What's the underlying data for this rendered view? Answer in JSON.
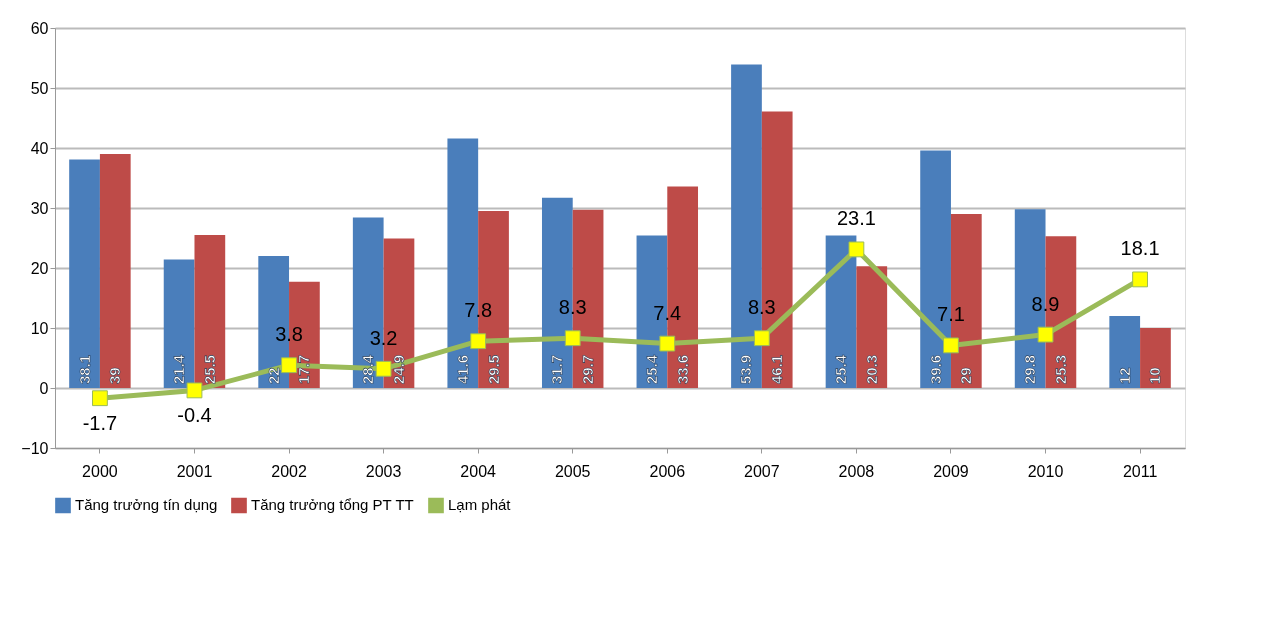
{
  "chart_data": {
    "type": "bar",
    "categories": [
      "2000",
      "2001",
      "2002",
      "2003",
      "2004",
      "2005",
      "2006",
      "2007",
      "2008",
      "2009",
      "2010",
      "2011"
    ],
    "series": [
      {
        "name": "Tăng trưởng tín dụng",
        "color": "#4a7ebb",
        "values": [
          38.1,
          21.4,
          22,
          28.4,
          41.6,
          31.7,
          25.4,
          53.9,
          25.4,
          39.6,
          29.8,
          12
        ]
      },
      {
        "name": "Tăng trưởng tổng PT TT",
        "color": "#be4b48",
        "values": [
          39,
          25.5,
          17.7,
          24.9,
          29.5,
          29.7,
          33.6,
          46.1,
          20.3,
          29,
          25.3,
          10
        ]
      },
      {
        "name": "Lạm phát",
        "type": "line",
        "color": "#9bbb59",
        "values": [
          -1.7,
          -0.4,
          3.8,
          3.2,
          7.8,
          8.3,
          7.4,
          8.3,
          23.1,
          7.1,
          8.9,
          18.1
        ]
      }
    ],
    "ylim": [
      -10,
      60
    ],
    "yticks": [
      -10,
      0,
      10,
      20,
      30,
      40,
      50,
      60
    ],
    "grid": "y",
    "legend": "bottom",
    "marker": "square",
    "data_labels": true
  }
}
